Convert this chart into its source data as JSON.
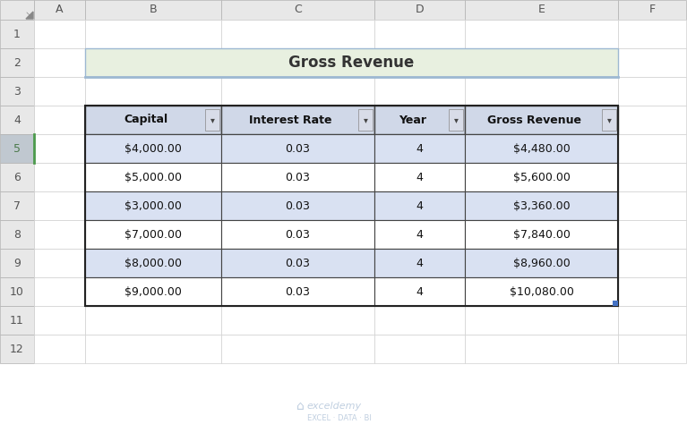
{
  "title": "Gross Revenue",
  "title_bg": "#e8f0e0",
  "title_border_bottom": "#9db8d2",
  "headers": [
    "Capital",
    "Interest Rate",
    "Year",
    "Gross Revenue"
  ],
  "header_bg": "#d0d8e8",
  "header_border": "#444444",
  "col_data": [
    [
      "$4,000.00",
      "$5,000.00",
      "$3,000.00",
      "$7,000.00",
      "$8,000.00",
      "$9,000.00"
    ],
    [
      "0.03",
      "0.03",
      "0.03",
      "0.03",
      "0.03",
      "0.03"
    ],
    [
      "4",
      "4",
      "4",
      "4",
      "4",
      "4"
    ],
    [
      "$4,480.00",
      "$5,600.00",
      "$3,360.00",
      "$7,840.00",
      "$8,960.00",
      "$10,080.00"
    ]
  ],
  "row_bg_odd": "#d9e1f2",
  "row_bg_even": "#ffffff",
  "cell_border": "#444444",
  "row_labels": [
    "1",
    "2",
    "3",
    "4",
    "5",
    "6",
    "7",
    "8",
    "9",
    "10",
    "11",
    "12"
  ],
  "col_labels": [
    "A",
    "B",
    "C",
    "D",
    "E",
    "F"
  ],
  "spreadsheet_bg": "#ffffff",
  "grid_color": "#d0d0d0",
  "col_header_bg": "#e8e8e8",
  "row_header_bg": "#e8e8e8",
  "row_header_selected_bg": "#c0c8d0",
  "row_header_selected_fg": "#4c7a4c",
  "watermark_color": "#c0cfe0",
  "fig_width": 7.67,
  "fig_height": 4.84,
  "dpi": 100
}
